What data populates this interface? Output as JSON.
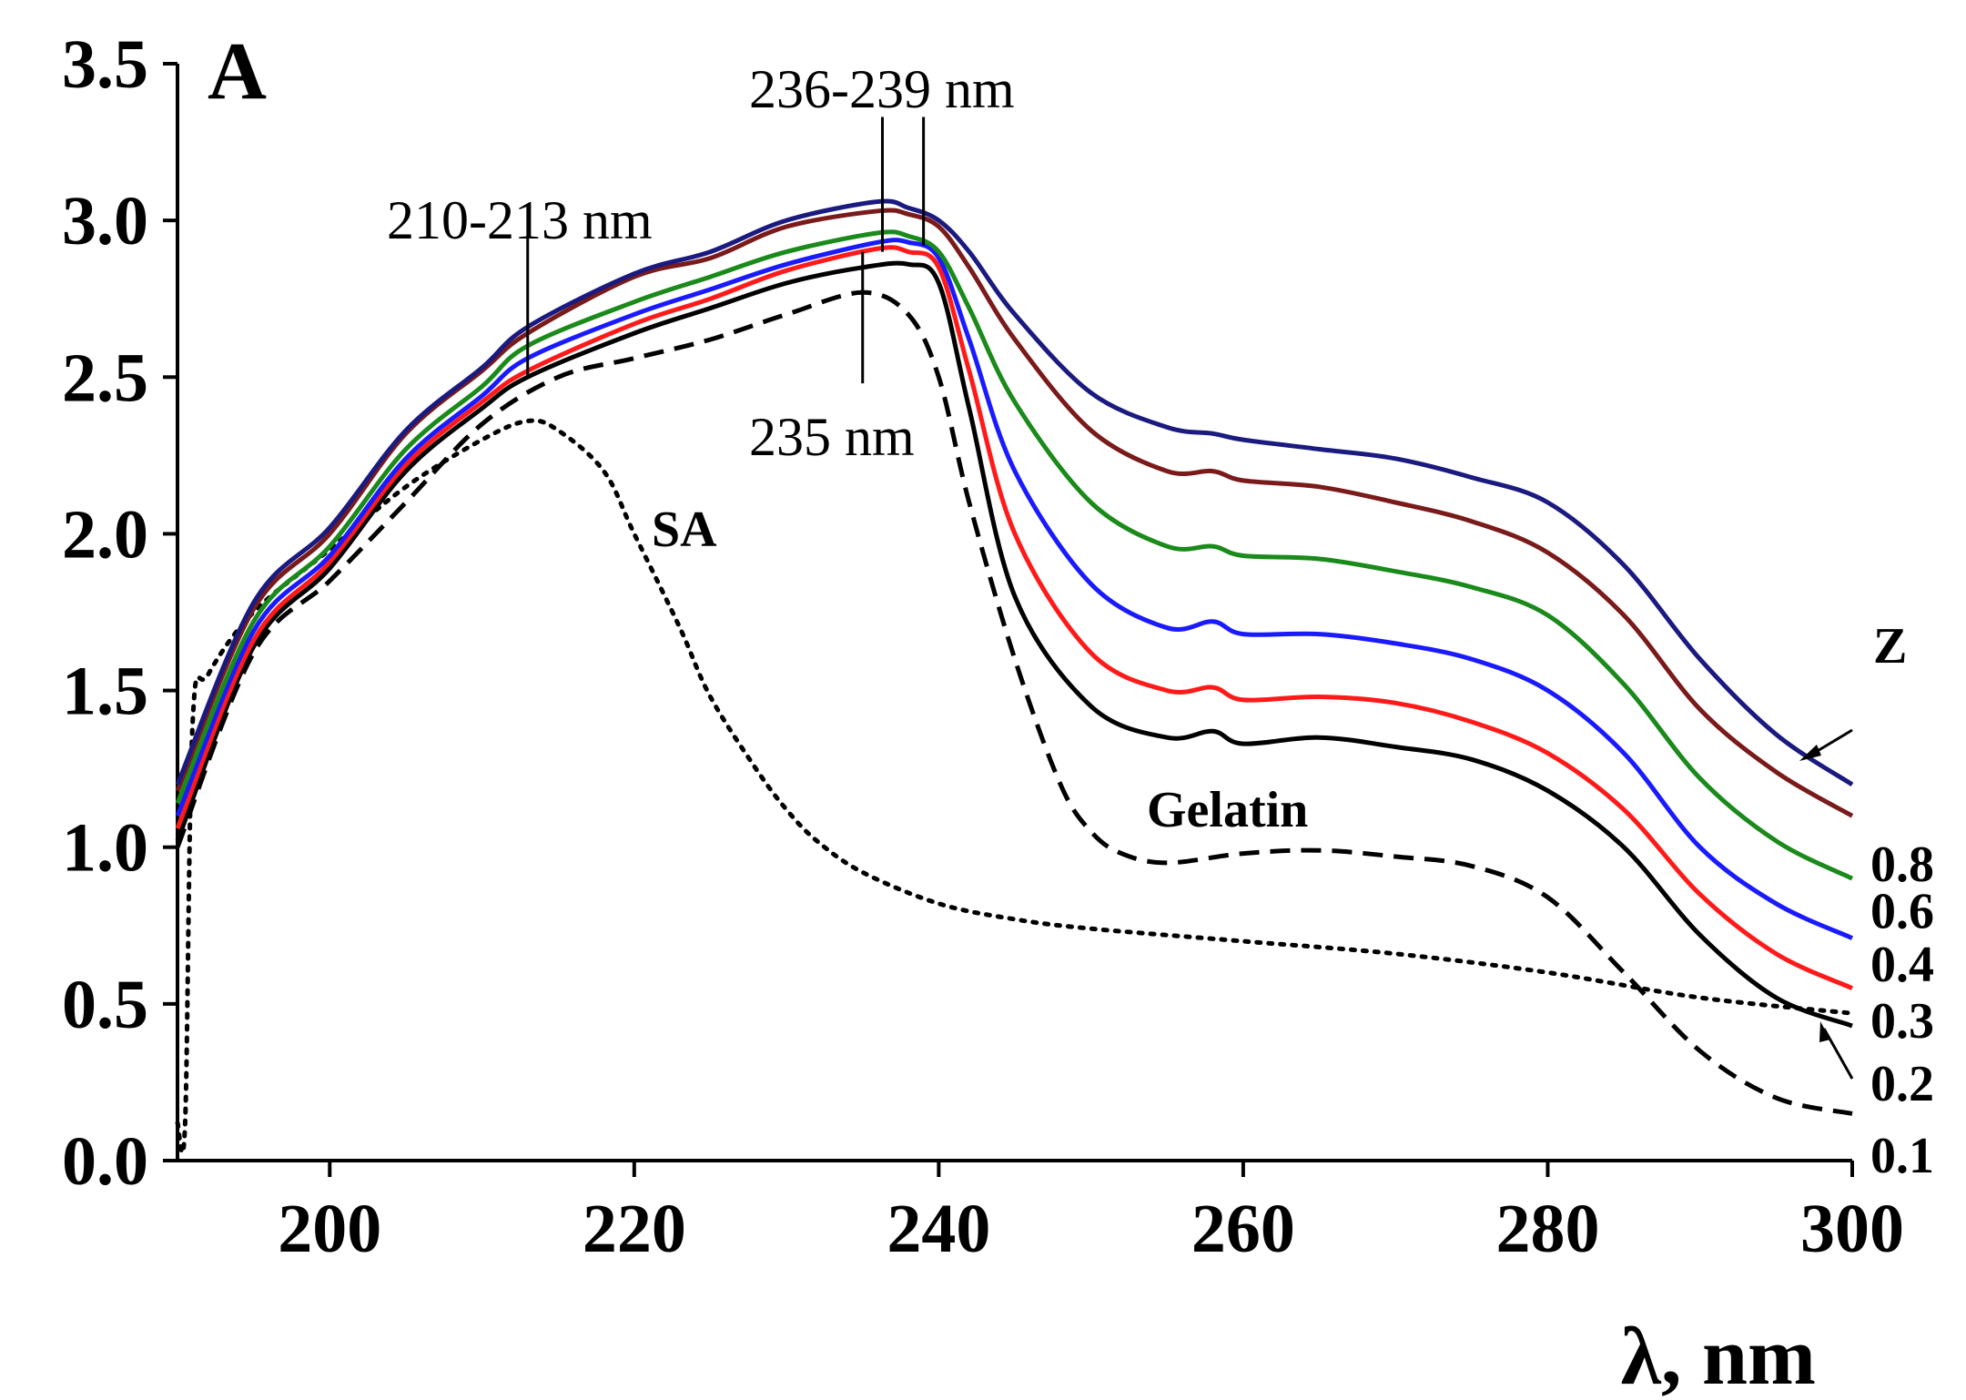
{
  "chart_data": {
    "type": "line",
    "panel_label": "A",
    "xlabel": "λ, nm",
    "ylabel": "",
    "xlim": [
      190,
      300
    ],
    "ylim": [
      0,
      3.5
    ],
    "x_ticks": [
      200,
      220,
      240,
      260,
      280,
      300
    ],
    "y_ticks": [
      0.0,
      0.5,
      1.0,
      1.5,
      2.0,
      2.5,
      3.0,
      3.5
    ],
    "x_tick_labels": [
      "200",
      "220",
      "240",
      "260",
      "280",
      "300"
    ],
    "y_tick_labels": [
      "0.0",
      "0.5",
      "1.0",
      "1.5",
      "2.0",
      "2.5",
      "3.0",
      "3.5"
    ],
    "legend_title": "Z",
    "grid": false,
    "series": [
      {
        "name": "0.8",
        "color": "#1a1a80",
        "dash": "solid",
        "x": [
          190,
          195,
          200,
          205,
          210,
          213,
          220,
          225,
          230,
          236,
          238,
          240,
          242,
          245,
          250,
          255,
          258,
          260,
          265,
          270,
          275,
          280,
          285,
          290,
          295,
          300
        ],
        "y": [
          1.2,
          1.78,
          2.02,
          2.33,
          2.53,
          2.66,
          2.83,
          2.9,
          3.0,
          3.06,
          3.04,
          3.0,
          2.9,
          2.7,
          2.45,
          2.34,
          2.32,
          2.3,
          2.27,
          2.24,
          2.18,
          2.1,
          1.9,
          1.6,
          1.36,
          1.2
        ]
      },
      {
        "name": "0.6",
        "color": "#7a1a1a",
        "dash": "solid",
        "x": [
          190,
          195,
          200,
          205,
          210,
          213,
          220,
          225,
          230,
          236,
          238,
          240,
          242,
          245,
          250,
          255,
          258,
          260,
          265,
          270,
          275,
          280,
          285,
          290,
          295,
          300
        ],
        "y": [
          1.18,
          1.76,
          2.0,
          2.32,
          2.52,
          2.64,
          2.82,
          2.88,
          2.98,
          3.03,
          3.02,
          2.98,
          2.85,
          2.62,
          2.33,
          2.2,
          2.2,
          2.17,
          2.15,
          2.1,
          2.04,
          1.94,
          1.74,
          1.44,
          1.24,
          1.1
        ]
      },
      {
        "name": "0.4",
        "color": "#1a8a1a",
        "dash": "solid",
        "x": [
          190,
          195,
          200,
          205,
          210,
          213,
          220,
          225,
          230,
          236,
          238,
          240,
          242,
          245,
          250,
          255,
          258,
          260,
          265,
          270,
          275,
          280,
          285,
          290,
          295,
          300
        ],
        "y": [
          1.14,
          1.72,
          1.96,
          2.27,
          2.47,
          2.6,
          2.74,
          2.82,
          2.9,
          2.96,
          2.95,
          2.9,
          2.72,
          2.42,
          2.1,
          1.96,
          1.96,
          1.93,
          1.92,
          1.88,
          1.83,
          1.74,
          1.52,
          1.22,
          1.02,
          0.9
        ]
      },
      {
        "name": "0.3",
        "color": "#1a1aff",
        "dash": "solid",
        "x": [
          190,
          195,
          200,
          205,
          210,
          213,
          220,
          225,
          230,
          236,
          238,
          240,
          242,
          245,
          250,
          255,
          258,
          260,
          265,
          270,
          275,
          280,
          285,
          290,
          295,
          300
        ],
        "y": [
          1.1,
          1.69,
          1.93,
          2.24,
          2.44,
          2.56,
          2.7,
          2.78,
          2.86,
          2.93,
          2.93,
          2.88,
          2.62,
          2.2,
          1.84,
          1.7,
          1.72,
          1.68,
          1.68,
          1.65,
          1.6,
          1.5,
          1.3,
          1.0,
          0.82,
          0.71
        ]
      },
      {
        "name": "0.2",
        "color": "#ff1a1a",
        "dash": "solid",
        "x": [
          190,
          195,
          200,
          205,
          210,
          213,
          220,
          225,
          230,
          236,
          238,
          240,
          242,
          245,
          250,
          255,
          258,
          260,
          265,
          270,
          275,
          280,
          285,
          290,
          295,
          300
        ],
        "y": [
          1.06,
          1.66,
          1.91,
          2.22,
          2.42,
          2.52,
          2.67,
          2.75,
          2.84,
          2.91,
          2.9,
          2.85,
          2.52,
          2.0,
          1.62,
          1.5,
          1.51,
          1.47,
          1.48,
          1.46,
          1.4,
          1.3,
          1.12,
          0.85,
          0.66,
          0.55
        ]
      },
      {
        "name": "0.1",
        "color": "#000000",
        "dash": "solid",
        "x": [
          190,
          195,
          200,
          205,
          210,
          213,
          220,
          225,
          230,
          235,
          238,
          240,
          242,
          245,
          250,
          255,
          258,
          260,
          265,
          270,
          275,
          280,
          285,
          290,
          295,
          300
        ],
        "y": [
          1.02,
          1.64,
          1.89,
          2.2,
          2.4,
          2.5,
          2.64,
          2.72,
          2.8,
          2.85,
          2.86,
          2.8,
          2.4,
          1.8,
          1.45,
          1.35,
          1.37,
          1.33,
          1.35,
          1.32,
          1.28,
          1.18,
          1.0,
          0.72,
          0.52,
          0.43
        ]
      },
      {
        "name": "Gelatin",
        "color": "#000000",
        "dash": "dashed",
        "x": [
          190,
          195,
          200,
          205,
          210,
          215,
          220,
          225,
          230,
          235,
          238,
          240,
          242,
          245,
          248,
          250,
          252,
          255,
          260,
          265,
          270,
          275,
          280,
          285,
          290,
          295,
          300
        ],
        "y": [
          1.0,
          1.62,
          1.85,
          2.1,
          2.35,
          2.5,
          2.56,
          2.62,
          2.7,
          2.77,
          2.7,
          2.5,
          2.1,
          1.6,
          1.2,
          1.05,
          0.98,
          0.95,
          0.98,
          0.99,
          0.97,
          0.94,
          0.84,
          0.6,
          0.35,
          0.2,
          0.15
        ]
      },
      {
        "name": "SA",
        "color": "#000000",
        "dash": "dotted",
        "x": [
          190,
          190.5,
          191,
          192,
          195,
          200,
          205,
          210,
          213,
          215,
          218,
          220,
          223,
          225,
          228,
          230,
          232,
          235,
          240,
          245,
          250,
          260,
          270,
          280,
          290,
          300
        ],
        "y": [
          0.12,
          0.12,
          1.4,
          1.55,
          1.75,
          1.95,
          2.15,
          2.3,
          2.36,
          2.33,
          2.2,
          2.0,
          1.7,
          1.48,
          1.25,
          1.12,
          1.02,
          0.92,
          0.82,
          0.77,
          0.74,
          0.7,
          0.66,
          0.6,
          0.52,
          0.47
        ]
      }
    ],
    "annotations": [
      {
        "text": "210-213 nm",
        "x": 213
      },
      {
        "text": "236-239 nm",
        "x": 236
      },
      {
        "text": "235 nm",
        "x": 235
      },
      {
        "text": "SA",
        "series": "SA"
      },
      {
        "text": "Gelatin",
        "series": "Gelatin"
      }
    ]
  }
}
